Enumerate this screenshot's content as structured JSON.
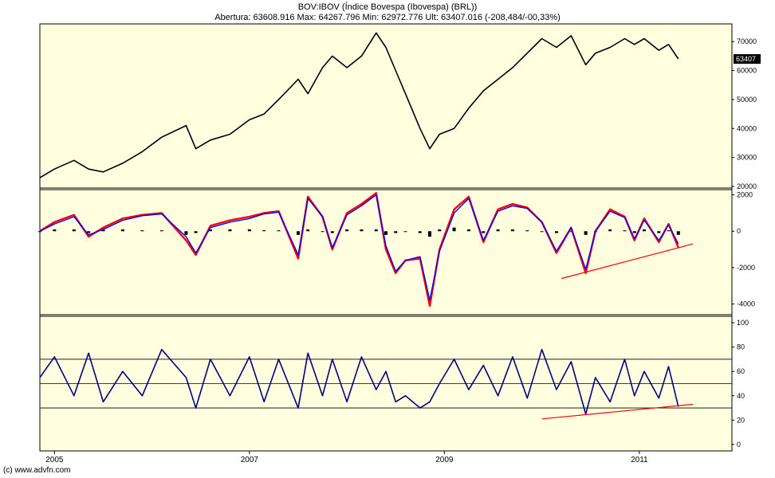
{
  "header": {
    "title": "BOV:IBOV (Índice Bovespa (Ibovespa) (BRL))",
    "quote": "Abertura: 63608.916 Max: 64267.796 Min: 62972.776 Ult: 63407.016 (-208,484/-00,33%)"
  },
  "footer": {
    "copyright": "(c) www.advfn.com"
  },
  "colors": {
    "background": "#ffffe0",
    "price": "#000000",
    "macd_line": "#ff0000",
    "signal_line": "#0000ff",
    "histogram": "#000000",
    "rsi": "#000080",
    "trendline": "#ff0000",
    "last_badge": "#000000"
  },
  "chart_data": [
    {
      "type": "line",
      "name": "price",
      "x_ticks": [
        "2005",
        "2007",
        "2009",
        "2011"
      ],
      "ylim": [
        20000,
        75000
      ],
      "y_ticks": [
        "20000",
        "30000",
        "40000",
        "50000",
        "60000",
        "70000"
      ],
      "last_value_label": "63407",
      "x": [
        2004.85,
        2005.0,
        2005.2,
        2005.35,
        2005.5,
        2005.7,
        2005.9,
        2006.1,
        2006.35,
        2006.45,
        2006.6,
        2006.8,
        2007.0,
        2007.15,
        2007.3,
        2007.5,
        2007.6,
        2007.75,
        2007.85,
        2008.0,
        2008.15,
        2008.3,
        2008.4,
        2008.5,
        2008.6,
        2008.75,
        2008.85,
        2008.95,
        2009.1,
        2009.25,
        2009.4,
        2009.55,
        2009.7,
        2009.85,
        2010.0,
        2010.15,
        2010.3,
        2010.45,
        2010.55,
        2010.7,
        2010.85,
        2010.95,
        2011.05,
        2011.2,
        2011.3,
        2011.4
      ],
      "values": [
        23000,
        26000,
        29000,
        26000,
        25000,
        28000,
        32000,
        37000,
        41000,
        33000,
        36000,
        38000,
        43000,
        45000,
        50000,
        57000,
        52000,
        61000,
        65000,
        61000,
        65000,
        73000,
        68000,
        60000,
        52000,
        40000,
        33000,
        38000,
        40000,
        47000,
        53000,
        57000,
        61000,
        66000,
        71000,
        68000,
        72000,
        62000,
        66000,
        68000,
        71000,
        69000,
        71000,
        67000,
        69000,
        64000
      ]
    },
    {
      "type": "line",
      "name": "macd",
      "ylim": [
        -4500,
        2200
      ],
      "y_ticks": [
        "2000",
        "0",
        "-2000",
        "-4000"
      ],
      "x": [
        2004.85,
        2005.0,
        2005.2,
        2005.35,
        2005.5,
        2005.7,
        2005.9,
        2006.1,
        2006.35,
        2006.45,
        2006.6,
        2006.8,
        2007.0,
        2007.15,
        2007.3,
        2007.5,
        2007.6,
        2007.75,
        2007.85,
        2008.0,
        2008.15,
        2008.3,
        2008.4,
        2008.5,
        2008.6,
        2008.75,
        2008.85,
        2008.95,
        2009.1,
        2009.25,
        2009.4,
        2009.55,
        2009.7,
        2009.85,
        2010.0,
        2010.15,
        2010.3,
        2010.45,
        2010.55,
        2010.7,
        2010.85,
        2010.95,
        2011.05,
        2011.2,
        2011.3,
        2011.4
      ],
      "macd_values": [
        0,
        500,
        900,
        -300,
        200,
        700,
        900,
        1000,
        -500,
        -1300,
        300,
        600,
        800,
        1000,
        1100,
        -1500,
        1900,
        800,
        -1000,
        1000,
        1500,
        2100,
        -1000,
        -2300,
        -1600,
        -1500,
        -4100,
        -1000,
        1200,
        1900,
        -600,
        1200,
        1500,
        1300,
        500,
        -1200,
        200,
        -2300,
        0,
        1200,
        800,
        -500,
        700,
        -600,
        400,
        -900
      ],
      "signal_values": [
        0,
        400,
        800,
        -200,
        100,
        600,
        850,
        950,
        -300,
        -1200,
        200,
        500,
        700,
        950,
        1050,
        -1300,
        1800,
        800,
        -900,
        900,
        1400,
        2000,
        -800,
        -2200,
        -1600,
        -1400,
        -3800,
        -1100,
        1000,
        1800,
        -500,
        1100,
        1400,
        1250,
        500,
        -1100,
        200,
        -2100,
        0,
        1100,
        750,
        -400,
        600,
        -500,
        350,
        -700
      ],
      "histogram_values": [
        0,
        100,
        100,
        -100,
        100,
        100,
        50,
        50,
        -200,
        -100,
        100,
        100,
        100,
        50,
        50,
        -200,
        100,
        0,
        -100,
        100,
        100,
        100,
        -200,
        -100,
        0,
        -100,
        -300,
        100,
        200,
        100,
        -100,
        100,
        100,
        50,
        0,
        -100,
        0,
        -200,
        0,
        100,
        50,
        -100,
        100,
        -100,
        50,
        -200
      ],
      "trendline": [
        {
          "x": 2010.2,
          "y": -2600
        },
        {
          "x": 2011.55,
          "y": -700
        }
      ]
    },
    {
      "type": "line",
      "name": "rsi",
      "ylim": [
        -4,
        104
      ],
      "y_ticks": [
        "100",
        "80",
        "60",
        "40",
        "20",
        "0"
      ],
      "grid": [
        70,
        50,
        30
      ],
      "x": [
        2004.85,
        2005.0,
        2005.2,
        2005.35,
        2005.5,
        2005.7,
        2005.9,
        2006.1,
        2006.35,
        2006.45,
        2006.6,
        2006.8,
        2007.0,
        2007.15,
        2007.3,
        2007.5,
        2007.6,
        2007.75,
        2007.85,
        2008.0,
        2008.15,
        2008.3,
        2008.4,
        2008.5,
        2008.6,
        2008.75,
        2008.85,
        2008.95,
        2009.1,
        2009.25,
        2009.4,
        2009.55,
        2009.7,
        2009.85,
        2010.0,
        2010.15,
        2010.3,
        2010.45,
        2010.55,
        2010.7,
        2010.85,
        2010.95,
        2011.05,
        2011.2,
        2011.3,
        2011.4
      ],
      "values": [
        55,
        72,
        40,
        75,
        35,
        60,
        40,
        78,
        55,
        30,
        70,
        40,
        72,
        35,
        70,
        30,
        75,
        40,
        70,
        35,
        72,
        45,
        60,
        35,
        40,
        30,
        35,
        50,
        70,
        45,
        65,
        40,
        72,
        38,
        78,
        45,
        68,
        25,
        55,
        35,
        70,
        40,
        60,
        38,
        64,
        31
      ],
      "trendline": [
        {
          "x": 2010.0,
          "y": 21
        },
        {
          "x": 2011.55,
          "y": 33
        }
      ]
    }
  ]
}
